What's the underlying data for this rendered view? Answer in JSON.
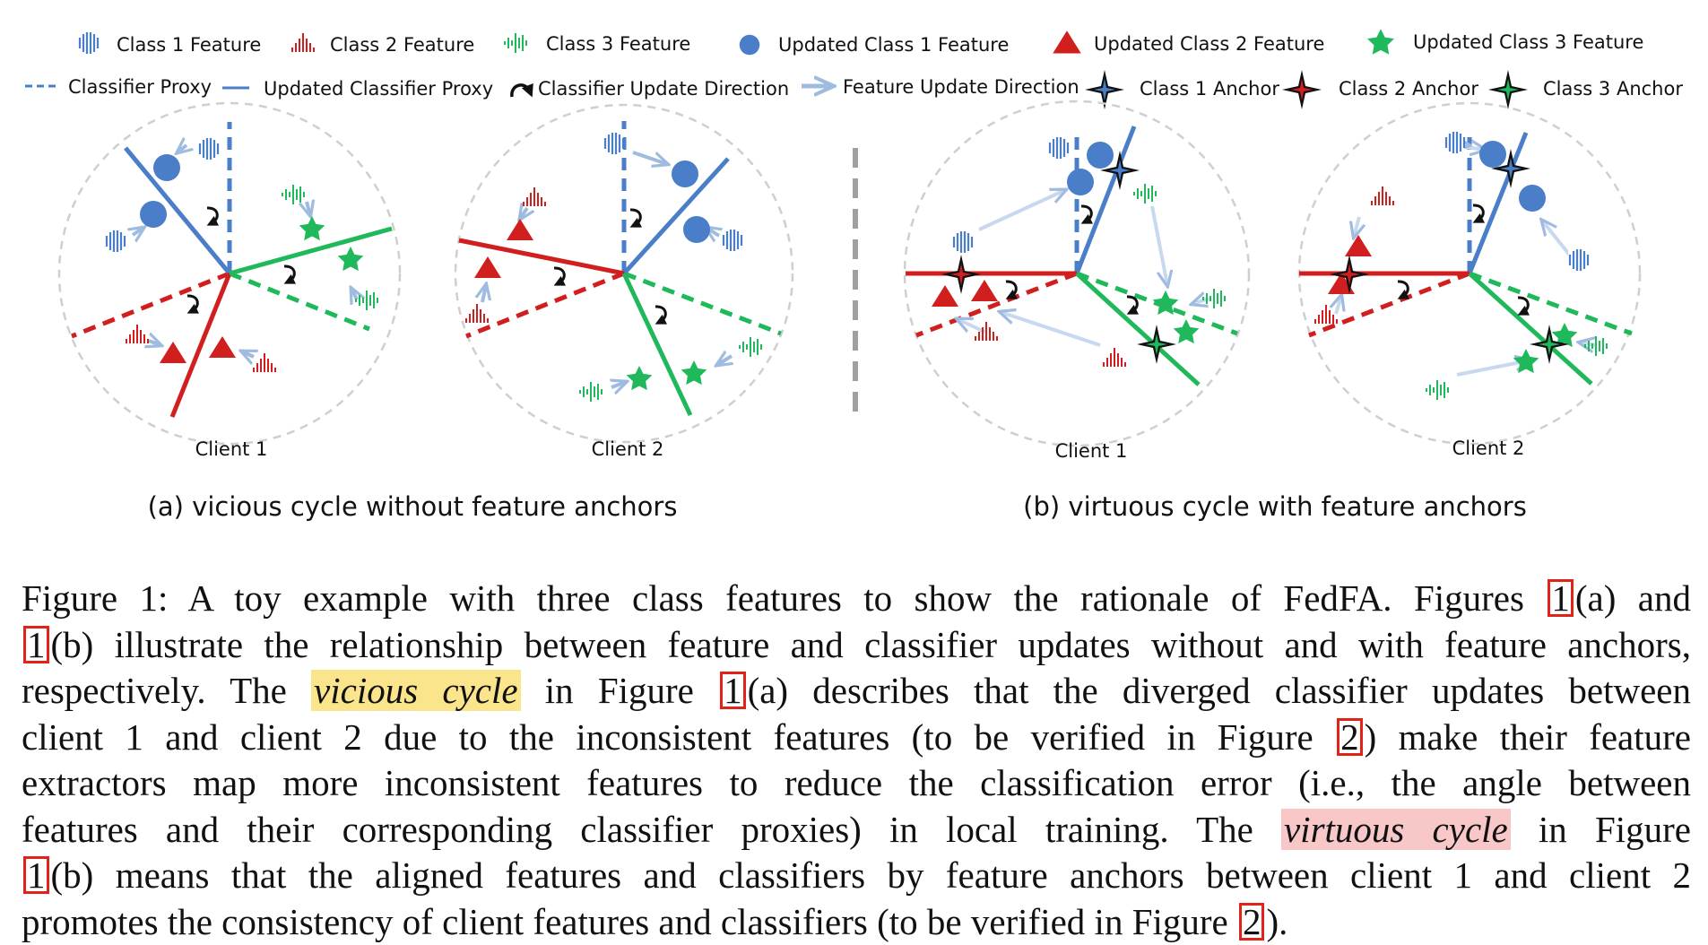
{
  "legend": {
    "class1_feature": "Class 1 Feature",
    "class2_feature": "Class 2 Feature",
    "class3_feature": "Class 3 Feature",
    "updated_class1_feature": "Updated Class 1 Feature",
    "updated_class2_feature": "Updated Class 2 Feature",
    "updated_class3_feature": "Updated Class 3 Feature",
    "classifier_proxy": "Classifier Proxy",
    "updated_classifier_proxy": "Updated Classifier Proxy",
    "classifier_update_direction": "Classifier Update Direction",
    "feature_update_direction": "Feature Update Direction",
    "class1_anchor": "Class 1 Anchor",
    "class2_anchor": "Class 2 Anchor",
    "class3_anchor": "Class 3 Anchor"
  },
  "panels": {
    "a_client1": "Client 1",
    "a_client2": "Client 2",
    "b_client1": "Client 1",
    "b_client2": "Client 2",
    "a_caption": "(a) vicious cycle without feature anchors",
    "b_caption": "(b) virtuous cycle with feature anchors"
  },
  "colors": {
    "class1": "#4a7ec9",
    "class2": "#d11f1f",
    "class3": "#1fb85a",
    "circle": "#cfcfcf",
    "highlight_vicious": "#fbe58c",
    "highlight_virtuous": "#f8c7c7",
    "ref_box": "#e2231a"
  },
  "caption": {
    "l1_a": "Figure 1: A toy example with three class features to show the rationale of FedFA. Figures ",
    "ref1": "1",
    "l1_b": "(a) and",
    "ref2": "1",
    "l2_b": "(b) illustrate the relationship between feature and classifier updates without and with feature anchors,",
    "l3_a": "respectively. The ",
    "vicious": "vicious cycle",
    "l3_b": " in Figure ",
    "ref3": "1",
    "l3_c": "(a) describes that the diverged classifier updates between",
    "l4_a": "client 1 and client 2 due to the inconsistent features (to be verified in Figure ",
    "ref4": "2",
    "l4_b": ") make their feature",
    "l5": "extractors map more inconsistent features to reduce the classification error (i.e., the angle between",
    "l6_a": "features and their corresponding classifier proxies) in local training. The ",
    "virtuous": "virtuous cycle",
    "l6_b": " in Figure",
    "ref5": "1",
    "l7_b": "(b) means that the aligned features and classifiers by feature anchors between client 1 and client 2",
    "l8_a": "promotes the consistency of client features and classifiers (to be verified in Figure ",
    "ref6": "2",
    "l8_b": ")."
  }
}
